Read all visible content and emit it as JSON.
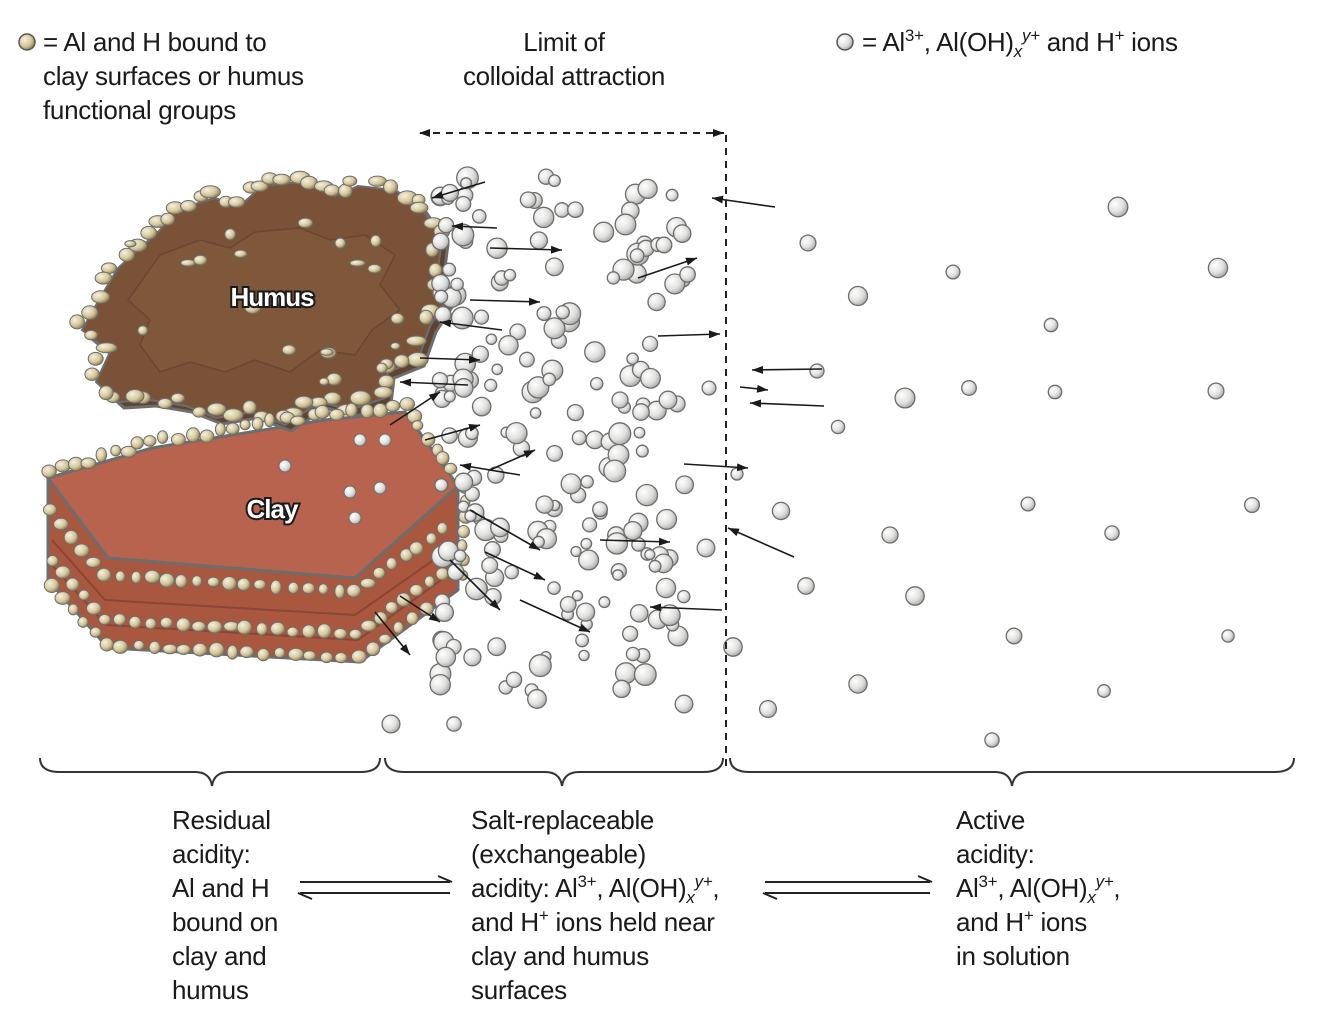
{
  "legend_bound": {
    "lines": [
      "= Al and H bound to",
      "clay surfaces or humus",
      "functional groups"
    ],
    "dot_color": "#b9a77a",
    "icon": "tan-circle-icon"
  },
  "legend_ions": {
    "prefix": "= Al",
    "sup1": "3+",
    "mid": ", Al(OH)",
    "sub": "x",
    "sup2": "y+",
    "and": " and H",
    "sup3": "+",
    "suffix": " ions",
    "dot_color": "#e2e2e0",
    "icon": "gray-circle-icon"
  },
  "limit_label": {
    "lines": [
      "Limit of",
      "colloidal attraction"
    ]
  },
  "humus_label": "Humus",
  "clay_label": "Clay",
  "colors": {
    "humus": "#7a5238",
    "clay": "#b8634e",
    "clay_side": "#a9573f",
    "outline": "#6d6d6d"
  },
  "residual": {
    "lines": [
      "Residual",
      "acidity:",
      "Al and H",
      "bound on",
      "clay and",
      "humus"
    ]
  },
  "salt": {
    "line1": "Salt-replaceable",
    "line2": "(exchangeable)",
    "line3a": "acidity: Al",
    "line3sup1": "3+",
    "line3b": ", Al(OH)",
    "line3sub": "x",
    "line3sup2": "y+",
    "line3c": ",",
    "line4a": "and H",
    "line4sup": "+",
    "line4b": " ions held near",
    "line5": "clay and humus",
    "line6": "surfaces"
  },
  "active": {
    "line1": "Active",
    "line2": "acidity:",
    "line3a": "Al",
    "line3sup1": "3+",
    "line3b": ", Al(OH)",
    "line3sub": "x",
    "line3sup2": "y+",
    "line3c": ",",
    "line4a": "and H",
    "line4sup": "+",
    "line4b": " ions",
    "line5": "in solution"
  }
}
